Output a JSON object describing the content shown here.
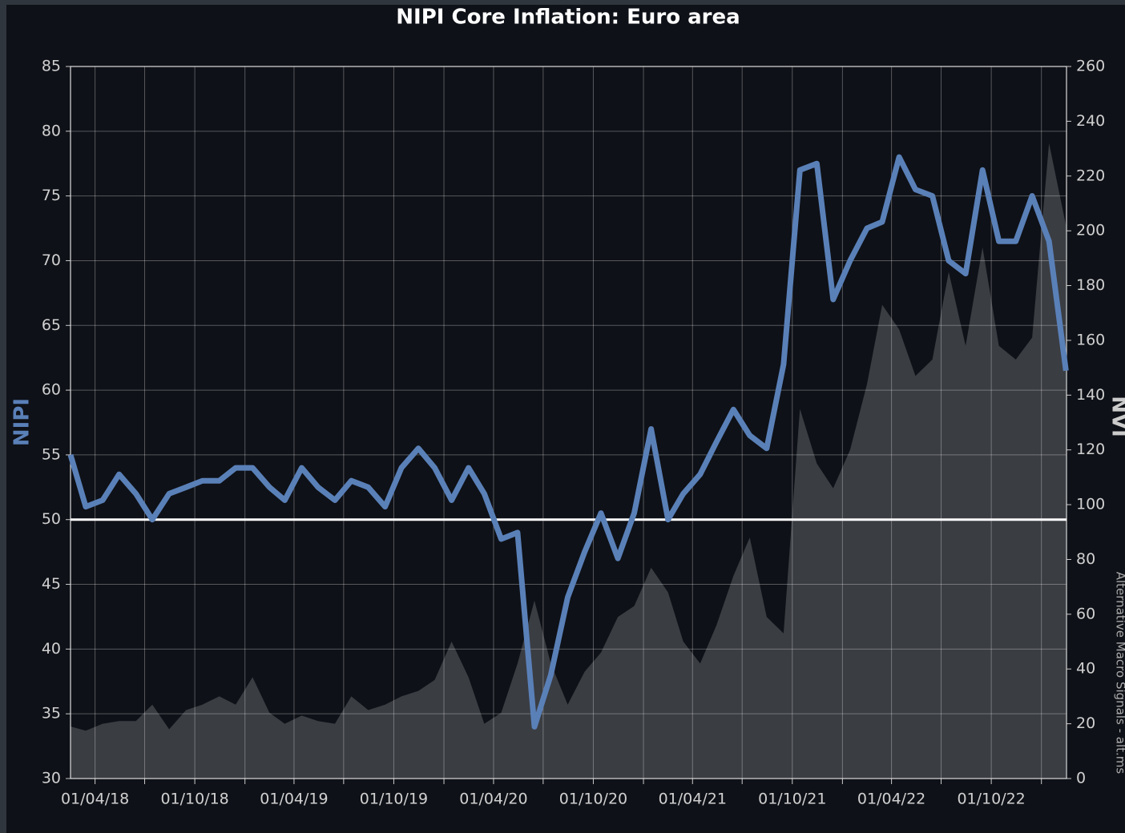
{
  "chart_data": {
    "type": "line",
    "title": "NIPI Core Inflation: Euro area",
    "ylabel": "NIPI",
    "y2label": "NVI",
    "note": "Alternative Macro Signals - alt.ms",
    "x": [
      "2018-02-15",
      "2018-03-15",
      "2018-04-15",
      "2018-05-15",
      "2018-06-15",
      "2018-07-15",
      "2018-08-15",
      "2018-09-15",
      "2018-10-15",
      "2018-11-15",
      "2018-12-15",
      "2019-01-15",
      "2019-02-15",
      "2019-03-15",
      "2019-04-15",
      "2019-05-15",
      "2019-06-15",
      "2019-07-15",
      "2019-08-15",
      "2019-09-15",
      "2019-10-15",
      "2019-11-15",
      "2019-12-15",
      "2020-01-15",
      "2020-02-15",
      "2020-03-15",
      "2020-04-15",
      "2020-05-15",
      "2020-06-15",
      "2020-07-15",
      "2020-08-15",
      "2020-09-15",
      "2020-10-15",
      "2020-11-15",
      "2020-12-15",
      "2021-01-15",
      "2021-02-15",
      "2021-03-15",
      "2021-04-15",
      "2021-05-15",
      "2021-06-15",
      "2021-07-15",
      "2021-08-15",
      "2021-09-15",
      "2021-10-15",
      "2021-11-15",
      "2021-12-15",
      "2022-01-15",
      "2022-02-15",
      "2022-03-15",
      "2022-04-15",
      "2022-05-15",
      "2022-06-15",
      "2022-07-15",
      "2022-08-15",
      "2022-09-15",
      "2022-10-15",
      "2022-11-15",
      "2022-12-15",
      "2023-01-15",
      "2023-02-15"
    ],
    "series": [
      {
        "name": "NVI",
        "style": "area",
        "axis": "y2",
        "color": "#3a3d42",
        "values": [
          19,
          17.5,
          20,
          21,
          21,
          27,
          18,
          25,
          27,
          30,
          27,
          37,
          24,
          20,
          23,
          21,
          20,
          30,
          25,
          27,
          30,
          32,
          36,
          50,
          37,
          20,
          24,
          42,
          65,
          42,
          27,
          39,
          46,
          59,
          63,
          77,
          68,
          50,
          42,
          56,
          74,
          88,
          59,
          53,
          135,
          115,
          106,
          120,
          144,
          173,
          164,
          147,
          153,
          185,
          158,
          194,
          158,
          153,
          161,
          232,
          202
        ]
      },
      {
        "name": "NIPI",
        "style": "line",
        "color": "#5a80b8",
        "values": [
          55,
          51,
          51.5,
          53.5,
          52,
          50,
          52,
          52.5,
          53,
          53,
          54,
          54,
          52.5,
          51.5,
          54,
          52.5,
          51.5,
          53,
          52.5,
          51,
          54,
          55.5,
          54,
          51.5,
          54,
          52,
          48.5,
          49,
          34,
          38,
          44,
          47.5,
          50.5,
          47,
          50.5,
          57,
          50,
          52,
          53.5,
          56,
          58.5,
          56.5,
          55.5,
          62,
          77,
          77.5,
          67,
          70,
          72.5,
          73,
          78,
          75.5,
          75,
          70,
          69,
          77,
          71.5,
          71.5,
          75,
          71.5,
          61.5
        ]
      }
    ],
    "reference_line": 50,
    "xlim": [
      "2018-02-15",
      "2023-02-16"
    ],
    "xticks": [
      {
        "value": "2018-04-01",
        "label": "01/04/18"
      },
      {
        "value": "2018-10-01",
        "label": "01/10/18"
      },
      {
        "value": "2019-04-01",
        "label": "01/04/19"
      },
      {
        "value": "2019-10-01",
        "label": "01/10/19"
      },
      {
        "value": "2020-04-01",
        "label": "01/04/20"
      },
      {
        "value": "2020-10-01",
        "label": "01/10/20"
      },
      {
        "value": "2021-04-01",
        "label": "01/04/21"
      },
      {
        "value": "2021-10-01",
        "label": "01/10/21"
      },
      {
        "value": "2022-04-01",
        "label": "01/04/22"
      },
      {
        "value": "2022-10-01",
        "label": "01/10/22"
      }
    ],
    "xminorticks": [
      "2018-07-01",
      "2019-01-01",
      "2019-07-01",
      "2020-01-01",
      "2020-07-01",
      "2021-01-01",
      "2021-07-01",
      "2022-01-01",
      "2022-07-01",
      "2023-01-01"
    ],
    "ylim": [
      30,
      85
    ],
    "yticks": [
      30,
      35,
      40,
      45,
      50,
      55,
      60,
      65,
      70,
      75,
      80,
      85
    ],
    "y2lim": [
      0,
      260
    ],
    "y2ticks": [
      0,
      20,
      40,
      60,
      80,
      100,
      120,
      140,
      160,
      180,
      200,
      220,
      240,
      260
    ],
    "grid": true
  }
}
